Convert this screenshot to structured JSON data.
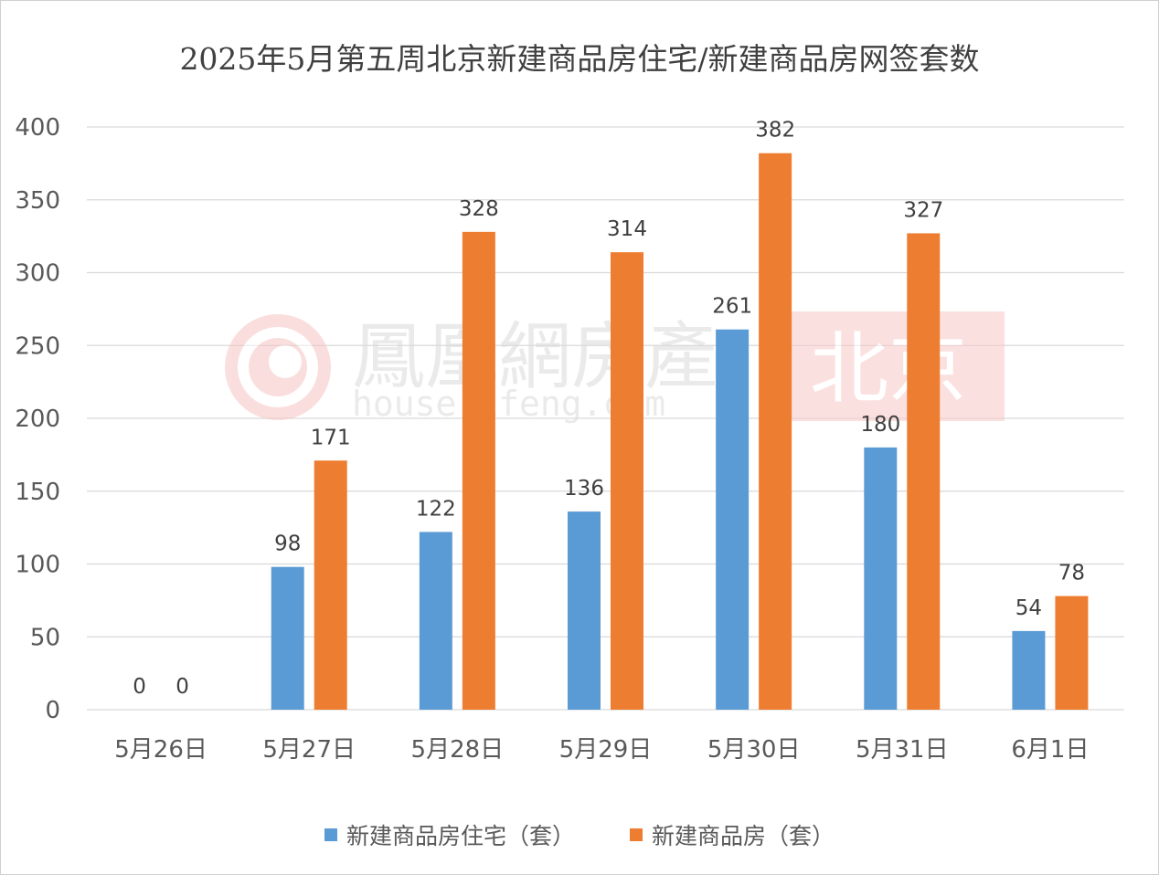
{
  "chart_data": {
    "type": "bar",
    "title": "2025年5月第五周北京新建商品房住宅/新建商品房网签套数",
    "categories": [
      "5月26日",
      "5月27日",
      "5月28日",
      "5月29日",
      "5月30日",
      "5月31日",
      "6月1日"
    ],
    "series": [
      {
        "name": "新建商品房住宅（套）",
        "color": "#5B9BD5",
        "values": [
          0,
          98,
          122,
          136,
          261,
          180,
          54
        ]
      },
      {
        "name": "新建商品房（套）",
        "color": "#ED7D31",
        "values": [
          0,
          171,
          328,
          314,
          382,
          327,
          78
        ]
      }
    ],
    "ylim": [
      0,
      400
    ],
    "yticks": [
      0,
      50,
      100,
      150,
      200,
      250,
      300,
      350,
      400
    ],
    "grid": true,
    "data_labels": true,
    "legend": "bottom"
  },
  "watermark": {
    "brand": "鳳凰網房產",
    "url": "house.ifeng.com",
    "city": "北京"
  }
}
